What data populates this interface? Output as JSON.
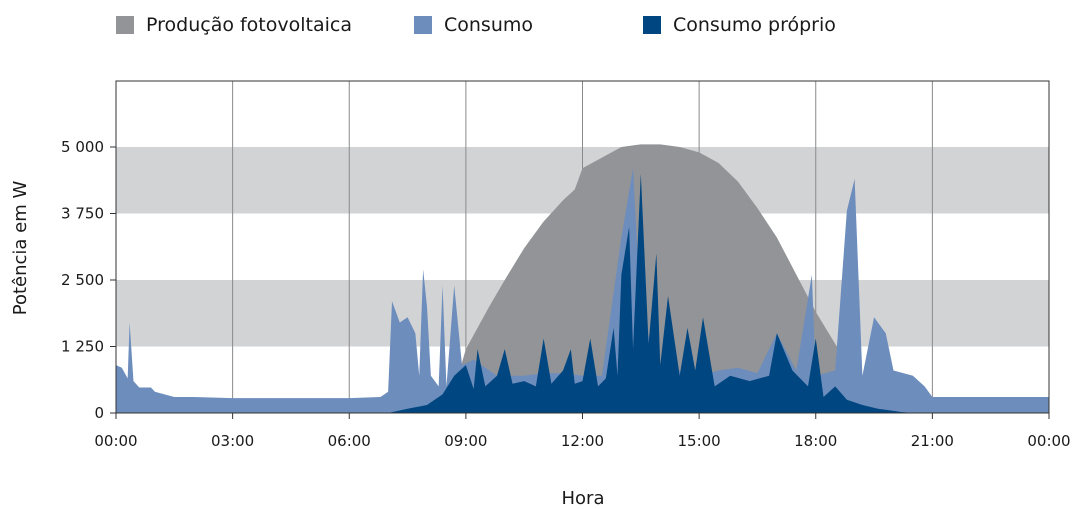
{
  "legend": {
    "pv": {
      "label": "Produção fotovoltaica",
      "color": "#939497"
    },
    "consumption": {
      "label": "Consumo",
      "color": "#6d8dbd"
    },
    "self": {
      "label": "Consumo próprio",
      "color": "#004680"
    }
  },
  "chart_data": {
    "type": "area",
    "xlabel": "Hora",
    "ylabel": "Potência em W",
    "x_ticks": [
      "00:00",
      "03:00",
      "06:00",
      "09:00",
      "12:00",
      "15:00",
      "18:00",
      "21:00",
      "00:00"
    ],
    "y_ticks": [
      {
        "value": 0,
        "label": "0"
      },
      {
        "value": 1250,
        "label": "1 250"
      },
      {
        "value": 2500,
        "label": "2 500"
      },
      {
        "value": 3750,
        "label": "3 750"
      },
      {
        "value": 5000,
        "label": "5 000"
      }
    ],
    "xlim": [
      0,
      24
    ],
    "ylim": [
      0,
      6200
    ],
    "grid": "vertical lines every 3 h; shaded horizontal bands 1250–2500 and 3750–5000",
    "legend_position": "top",
    "series": [
      {
        "name": "Produção fotovoltaica",
        "color": "#939497",
        "points": [
          [
            0,
            0
          ],
          [
            7.0,
            0
          ],
          [
            7.5,
            60
          ],
          [
            8.0,
            150
          ],
          [
            8.5,
            350
          ],
          [
            8.8,
            700
          ],
          [
            9.0,
            1200
          ],
          [
            9.3,
            1600
          ],
          [
            9.6,
            2000
          ],
          [
            10.0,
            2500
          ],
          [
            10.5,
            3100
          ],
          [
            11.0,
            3600
          ],
          [
            11.5,
            4000
          ],
          [
            11.8,
            4200
          ],
          [
            12.0,
            4600
          ],
          [
            12.5,
            4800
          ],
          [
            13.0,
            5000
          ],
          [
            13.5,
            5050
          ],
          [
            14.0,
            5050
          ],
          [
            14.5,
            5000
          ],
          [
            15.0,
            4900
          ],
          [
            15.5,
            4700
          ],
          [
            16.0,
            4350
          ],
          [
            16.5,
            3850
          ],
          [
            17.0,
            3300
          ],
          [
            17.5,
            2600
          ],
          [
            18.0,
            1900
          ],
          [
            18.5,
            1300
          ],
          [
            19.0,
            750
          ],
          [
            19.5,
            400
          ],
          [
            20.0,
            150
          ],
          [
            20.4,
            40
          ],
          [
            20.8,
            0
          ],
          [
            24,
            0
          ]
        ]
      },
      {
        "name": "Consumo",
        "color": "#6d8dbd",
        "points": [
          [
            0,
            900
          ],
          [
            0.15,
            850
          ],
          [
            0.3,
            650
          ],
          [
            0.35,
            1700
          ],
          [
            0.45,
            600
          ],
          [
            0.6,
            480
          ],
          [
            0.9,
            480
          ],
          [
            1.0,
            400
          ],
          [
            1.5,
            300
          ],
          [
            2.0,
            300
          ],
          [
            3.0,
            280
          ],
          [
            4.0,
            280
          ],
          [
            5.0,
            280
          ],
          [
            6.0,
            280
          ],
          [
            6.8,
            300
          ],
          [
            7.0,
            400
          ],
          [
            7.1,
            2100
          ],
          [
            7.3,
            1700
          ],
          [
            7.5,
            1800
          ],
          [
            7.7,
            1500
          ],
          [
            7.8,
            700
          ],
          [
            7.9,
            2700
          ],
          [
            8.0,
            2000
          ],
          [
            8.1,
            700
          ],
          [
            8.3,
            500
          ],
          [
            8.4,
            2400
          ],
          [
            8.5,
            500
          ],
          [
            8.7,
            2400
          ],
          [
            8.9,
            900
          ],
          [
            9.2,
            1000
          ],
          [
            9.8,
            700
          ],
          [
            10.5,
            700
          ],
          [
            11.0,
            750
          ],
          [
            11.5,
            750
          ],
          [
            12.0,
            700
          ],
          [
            12.5,
            700
          ],
          [
            13.0,
            3300
          ],
          [
            13.3,
            4600
          ],
          [
            13.5,
            1800
          ],
          [
            14.0,
            900
          ],
          [
            14.5,
            800
          ],
          [
            15.0,
            700
          ],
          [
            15.5,
            800
          ],
          [
            16.0,
            850
          ],
          [
            16.5,
            750
          ],
          [
            17.0,
            1500
          ],
          [
            17.5,
            800
          ],
          [
            17.9,
            2600
          ],
          [
            18.0,
            700
          ],
          [
            18.5,
            800
          ],
          [
            18.8,
            3800
          ],
          [
            19.0,
            4400
          ],
          [
            19.2,
            700
          ],
          [
            19.5,
            1800
          ],
          [
            19.8,
            1500
          ],
          [
            20.0,
            800
          ],
          [
            20.5,
            700
          ],
          [
            20.8,
            500
          ],
          [
            21.0,
            300
          ],
          [
            22.0,
            300
          ],
          [
            23.0,
            300
          ],
          [
            24,
            300
          ]
        ]
      },
      {
        "name": "Consumo próprio",
        "color": "#004680",
        "points": [
          [
            0,
            0
          ],
          [
            7.0,
            0
          ],
          [
            7.5,
            80
          ],
          [
            8.0,
            150
          ],
          [
            8.4,
            350
          ],
          [
            8.7,
            700
          ],
          [
            9.0,
            900
          ],
          [
            9.2,
            450
          ],
          [
            9.3,
            1200
          ],
          [
            9.5,
            500
          ],
          [
            9.8,
            700
          ],
          [
            10.0,
            1200
          ],
          [
            10.2,
            550
          ],
          [
            10.5,
            600
          ],
          [
            10.8,
            500
          ],
          [
            11.0,
            1400
          ],
          [
            11.2,
            550
          ],
          [
            11.5,
            800
          ],
          [
            11.7,
            1200
          ],
          [
            11.8,
            550
          ],
          [
            12.0,
            600
          ],
          [
            12.2,
            1400
          ],
          [
            12.4,
            500
          ],
          [
            12.6,
            650
          ],
          [
            12.8,
            1600
          ],
          [
            12.9,
            700
          ],
          [
            13.0,
            2600
          ],
          [
            13.2,
            3500
          ],
          [
            13.3,
            1200
          ],
          [
            13.5,
            4500
          ],
          [
            13.7,
            1300
          ],
          [
            13.9,
            3000
          ],
          [
            14.0,
            900
          ],
          [
            14.2,
            2200
          ],
          [
            14.5,
            700
          ],
          [
            14.7,
            1600
          ],
          [
            14.9,
            800
          ],
          [
            15.1,
            1800
          ],
          [
            15.4,
            500
          ],
          [
            15.8,
            700
          ],
          [
            16.3,
            600
          ],
          [
            16.8,
            700
          ],
          [
            17.0,
            1500
          ],
          [
            17.4,
            800
          ],
          [
            17.8,
            500
          ],
          [
            18.0,
            1400
          ],
          [
            18.2,
            300
          ],
          [
            18.5,
            500
          ],
          [
            18.8,
            250
          ],
          [
            19.2,
            150
          ],
          [
            19.6,
            80
          ],
          [
            20.2,
            20
          ],
          [
            20.5,
            0
          ],
          [
            24,
            0
          ]
        ]
      }
    ]
  }
}
